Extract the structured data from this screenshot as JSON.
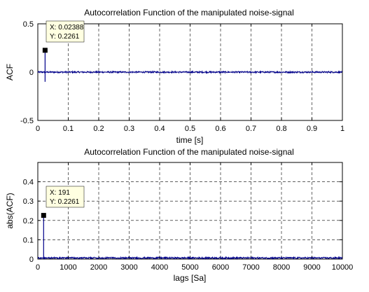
{
  "chart_data": [
    {
      "type": "line",
      "title": "Autocorrelation Function of the manipulated noise-signal",
      "xlabel": "time [s]",
      "ylabel": "ACF",
      "xlim": [
        0,
        1
      ],
      "ylim": [
        -0.5,
        0.5
      ],
      "xticks": [
        0,
        0.1,
        0.2,
        0.3,
        0.4,
        0.5,
        0.6,
        0.7,
        0.8,
        0.9,
        1
      ],
      "xtick_labels": [
        "0",
        "0.1",
        "0.2",
        "0.3",
        "0.4",
        "0.5",
        "0.6",
        "0.7",
        "0.8",
        "0.9",
        "1"
      ],
      "yticks": [
        -0.5,
        0,
        0.5
      ],
      "ytick_labels": [
        "-0.5",
        "0",
        "0.5"
      ],
      "grid": true,
      "series_color": "#00008b",
      "spike": {
        "x": 0.02388,
        "y": 0.2261,
        "min": -0.1
      },
      "noise_amplitude": 0.008,
      "datatip": {
        "x_text": "X: 0.02388",
        "y_text": "Y: 0.2261"
      }
    },
    {
      "type": "line",
      "title": "Autocorrelation Function of the manipulated noise-signal",
      "xlabel": "lags [Sa]",
      "ylabel": "abs(ACF)",
      "xlim": [
        0,
        10000
      ],
      "ylim": [
        0,
        0.5
      ],
      "xticks": [
        0,
        1000,
        2000,
        3000,
        4000,
        5000,
        6000,
        7000,
        8000,
        9000,
        10000
      ],
      "xtick_labels": [
        "0",
        "1000",
        "2000",
        "3000",
        "4000",
        "5000",
        "6000",
        "7000",
        "8000",
        "9000",
        "10000"
      ],
      "yticks": [
        0,
        0.1,
        0.2,
        0.3,
        0.4
      ],
      "ytick_labels": [
        "0",
        "0.1",
        "0.2",
        "0.3",
        "0.4"
      ],
      "grid": true,
      "series_color": "#00008b",
      "spike": {
        "x": 191,
        "y": 0.2261,
        "min": 0
      },
      "noise_amplitude": 0.008,
      "datatip": {
        "x_text": "X: 191",
        "y_text": "Y: 0.2261"
      }
    }
  ]
}
